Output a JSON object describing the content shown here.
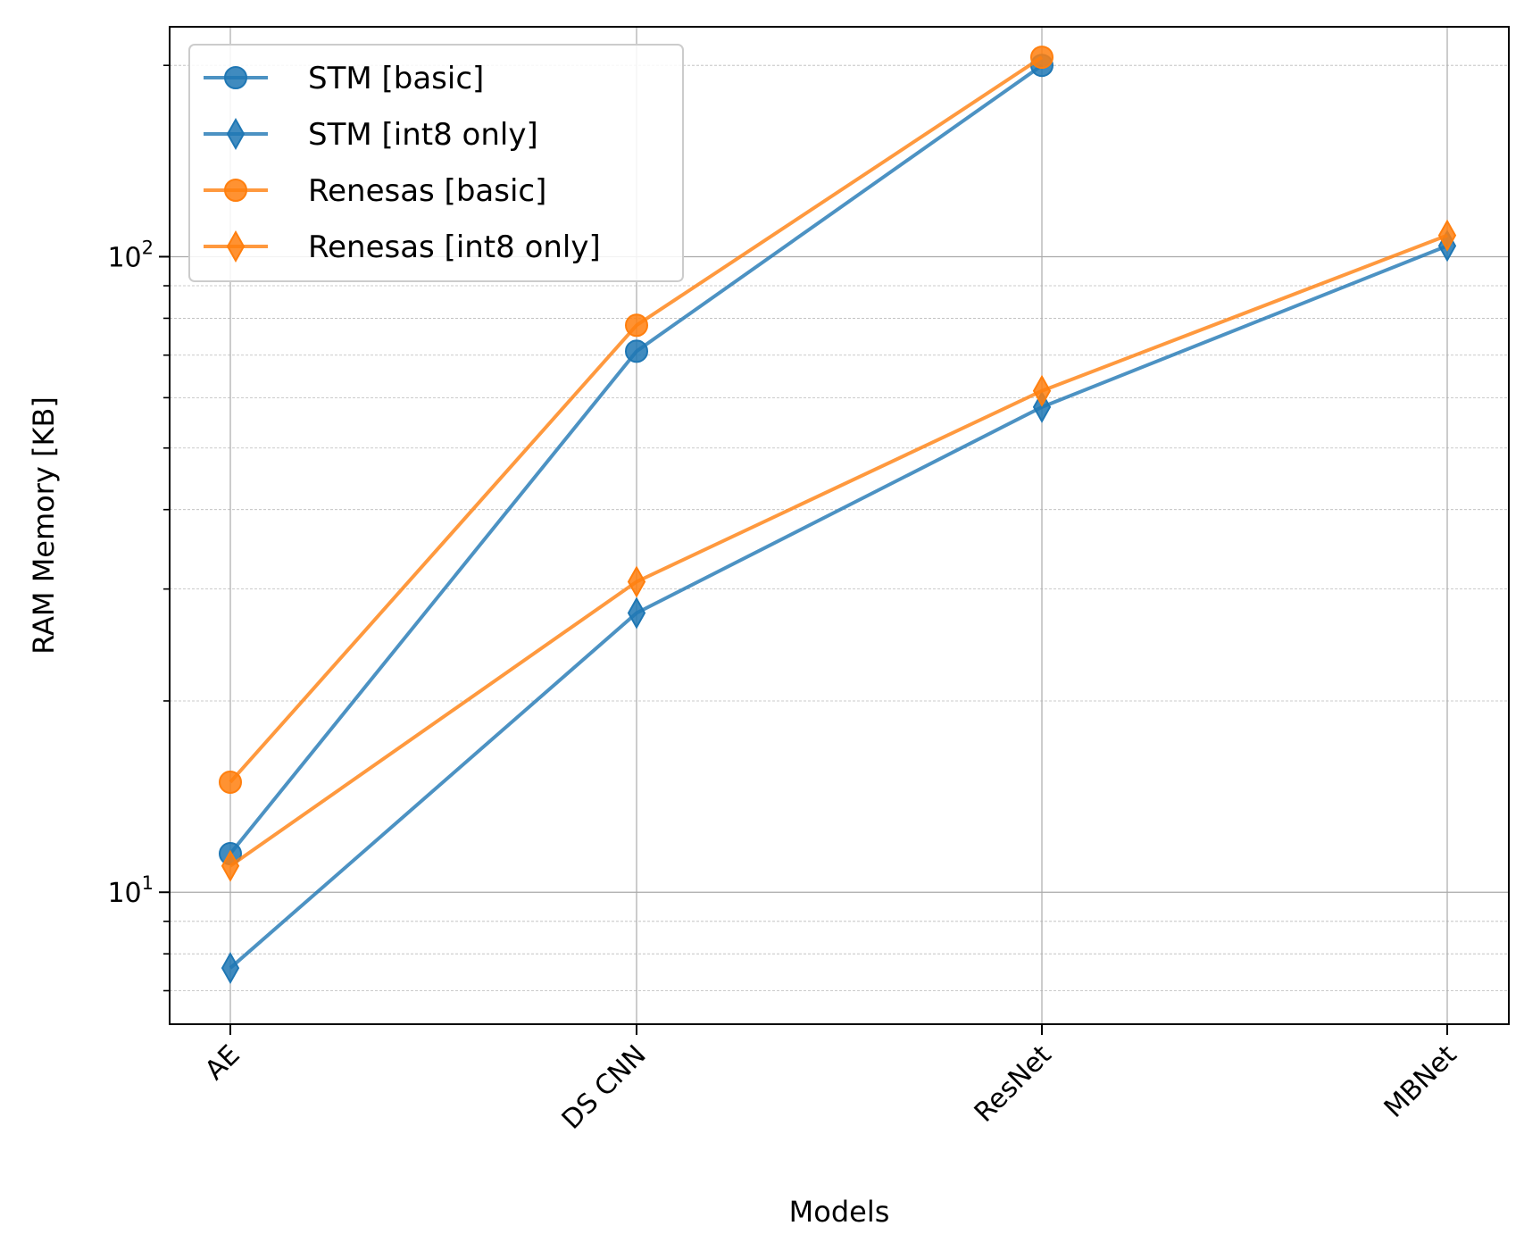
{
  "chart_data": {
    "type": "line",
    "title": "",
    "xlabel": "Models",
    "ylabel": "RAM Memory [KB]",
    "yscale": "log",
    "ylim": [
      6.2,
      230
    ],
    "categories": [
      "AE",
      "DS CNN",
      "ResNet",
      "MBNet"
    ],
    "yticks": [
      {
        "value": 10,
        "base": "10",
        "exp": "1"
      },
      {
        "value": 100,
        "base": "10",
        "exp": "2"
      }
    ],
    "grid": true,
    "legend_position": "top-left",
    "series": [
      {
        "name": "STM [basic]",
        "marker": "circle",
        "color": "#1f77b4",
        "values": [
          11.5,
          71,
          200,
          null
        ]
      },
      {
        "name": "STM [int8 only]",
        "marker": "diamond",
        "color": "#1f77b4",
        "values": [
          7.6,
          27.5,
          58,
          104
        ]
      },
      {
        "name": "Renesas [basic]",
        "marker": "circle",
        "color": "#ff7f0e",
        "values": [
          14.9,
          78,
          206,
          null
        ]
      },
      {
        "name": "Renesas [int8 only]",
        "marker": "diamond",
        "color": "#ff7f0e",
        "values": [
          11,
          30.8,
          61.5,
          108
        ]
      }
    ]
  }
}
